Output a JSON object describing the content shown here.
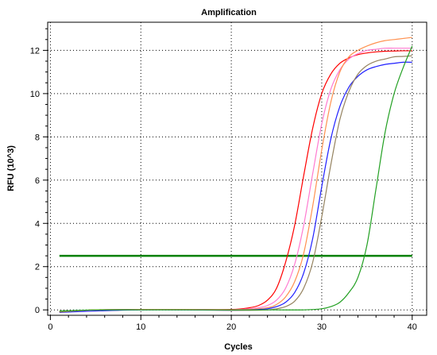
{
  "chart_data": {
    "type": "line",
    "title": "Amplification",
    "xlabel": "Cycles",
    "ylabel": "RFU (10^3)",
    "xlim": [
      -0.3,
      41.6
    ],
    "ylim": [
      -0.25,
      13.3
    ],
    "xticks": [
      0,
      10,
      20,
      30,
      40
    ],
    "yticks": [
      0,
      2,
      4,
      6,
      8,
      10,
      12
    ],
    "grid": true,
    "threshold": {
      "value": 2.5,
      "color": "#008000",
      "from": 1,
      "to": 40
    },
    "series": [
      {
        "color": "#ff0000",
        "x": [
          1,
          5,
          10,
          15,
          20,
          22,
          23,
          24,
          25,
          26,
          27,
          28,
          29,
          30,
          31,
          32,
          33,
          34,
          35,
          36,
          37,
          38,
          39,
          40
        ],
        "y": [
          -0.08,
          0.0,
          0.02,
          0.02,
          0.02,
          0.1,
          0.2,
          0.45,
          1.0,
          2.2,
          3.9,
          6.2,
          8.4,
          10.0,
          10.9,
          11.4,
          11.65,
          11.8,
          11.88,
          11.93,
          11.96,
          11.97,
          11.98,
          11.98
        ]
      },
      {
        "color": "#ff7ad0",
        "x": [
          1,
          5,
          10,
          15,
          20,
          22,
          23,
          24,
          25,
          26,
          27,
          28,
          29,
          30,
          31,
          32,
          33,
          34,
          35,
          36,
          37,
          38,
          39,
          40
        ],
        "y": [
          -0.08,
          0.0,
          0.02,
          0.02,
          0.01,
          0.05,
          0.1,
          0.2,
          0.45,
          1.0,
          2.1,
          3.9,
          6.3,
          8.6,
          10.2,
          11.1,
          11.6,
          11.85,
          12.0,
          12.05,
          12.1,
          12.1,
          12.1,
          12.1
        ]
      },
      {
        "color": "#ff9150",
        "x": [
          1,
          5,
          10,
          15,
          20,
          22,
          24,
          25,
          26,
          27,
          28,
          29,
          30,
          31,
          32,
          33,
          34,
          35,
          36,
          37,
          38,
          39,
          40
        ],
        "y": [
          -0.1,
          0.0,
          0.02,
          0.02,
          0.0,
          0.02,
          0.1,
          0.25,
          0.6,
          1.3,
          2.6,
          4.8,
          7.4,
          9.6,
          11.0,
          11.7,
          12.0,
          12.2,
          12.35,
          12.45,
          12.5,
          12.55,
          12.6
        ]
      },
      {
        "color": "#1f1fff",
        "x": [
          1,
          5,
          10,
          15,
          20,
          22,
          24,
          25,
          26,
          27,
          28,
          29,
          30,
          31,
          32,
          33,
          34,
          35,
          36,
          37,
          38,
          39,
          40
        ],
        "y": [
          -0.12,
          -0.05,
          0.0,
          0.0,
          -0.02,
          0.0,
          0.05,
          0.15,
          0.35,
          0.8,
          1.7,
          3.3,
          5.7,
          7.9,
          9.4,
          10.3,
          10.8,
          11.1,
          11.25,
          11.35,
          11.4,
          11.45,
          11.45
        ]
      },
      {
        "color": "#958360",
        "x": [
          1,
          5,
          10,
          15,
          20,
          22,
          24,
          25,
          26,
          27,
          28,
          29,
          30,
          31,
          32,
          33,
          34,
          35,
          36,
          37,
          38,
          39,
          40
        ],
        "y": [
          -0.1,
          0.0,
          0.01,
          0.01,
          -0.02,
          -0.02,
          0.0,
          0.05,
          0.15,
          0.4,
          1.0,
          2.2,
          4.3,
          6.7,
          8.8,
          10.1,
          10.9,
          11.3,
          11.5,
          11.6,
          11.7,
          11.72,
          11.75
        ]
      },
      {
        "color": "#22a022",
        "x": [
          1,
          5,
          10,
          15,
          20,
          25,
          28,
          30,
          31,
          32,
          33,
          34,
          35,
          36,
          37,
          38,
          39,
          40
        ],
        "y": [
          -0.05,
          0.0,
          0.0,
          0.0,
          0.0,
          0.0,
          0.0,
          0.05,
          0.15,
          0.35,
          0.8,
          1.5,
          3.0,
          5.6,
          8.2,
          10.0,
          11.2,
          12.2
        ]
      }
    ]
  }
}
